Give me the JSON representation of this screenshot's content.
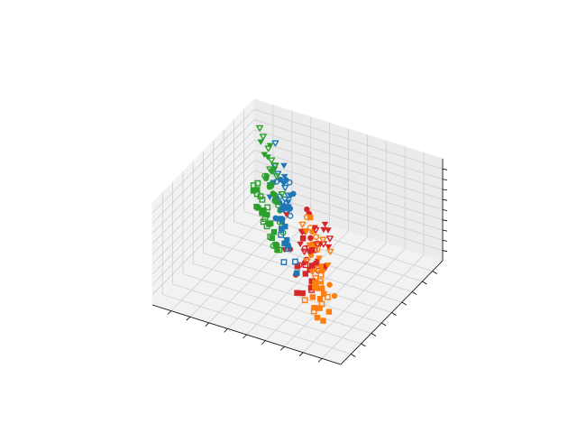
{
  "chart_data": {
    "type": "scatter",
    "projection": "3d",
    "title": "",
    "xlabel": "",
    "ylabel": "",
    "zlabel": "",
    "grid": true,
    "tick_labels_visible": false,
    "xlim": [
      0,
      10
    ],
    "ylim": [
      0,
      10
    ],
    "zlim": [
      0,
      10
    ],
    "x_ticks": [
      1,
      2,
      3,
      4,
      5,
      6,
      7,
      8,
      9
    ],
    "y_ticks": [
      1,
      2,
      3,
      4,
      5,
      6,
      7,
      8,
      9
    ],
    "z_ticks": [
      1,
      2,
      3,
      4,
      5,
      6,
      7,
      8,
      9
    ],
    "series": [
      {
        "color": "#d62728",
        "marker": "triangle-down",
        "filled": true,
        "points": [
          [
            2.5,
            2.0,
            8.3
          ],
          [
            3.0,
            3.0,
            8.6
          ],
          [
            2.0,
            2.5,
            7.8
          ],
          [
            3.5,
            2.5,
            7.2
          ],
          [
            2.8,
            3.5,
            8.0
          ],
          [
            2.2,
            1.8,
            7.0
          ],
          [
            3.2,
            2.2,
            8.9
          ],
          [
            4.5,
            3.0,
            9.0
          ],
          [
            3.8,
            1.5,
            7.5
          ],
          [
            2.6,
            2.8,
            7.4
          ],
          [
            3.0,
            4.0,
            7.9
          ],
          [
            2.4,
            3.2,
            8.5
          ]
        ]
      },
      {
        "color": "#d62728",
        "marker": "triangle-down",
        "filled": false,
        "points": [
          [
            2.0,
            2.0,
            8.6
          ],
          [
            3.4,
            2.8,
            8.2
          ],
          [
            2.8,
            1.6,
            7.8
          ],
          [
            2.2,
            3.0,
            8.0
          ],
          [
            3.0,
            2.4,
            7.2
          ],
          [
            4.0,
            3.6,
            7.0
          ],
          [
            2.6,
            2.0,
            7.6
          ],
          [
            3.6,
            4.2,
            6.8
          ]
        ]
      },
      {
        "color": "#d62728",
        "marker": "circle",
        "filled": true,
        "points": [
          [
            3.0,
            2.0,
            6.2
          ],
          [
            3.5,
            3.5,
            6.8
          ],
          [
            2.2,
            2.5,
            5.8
          ],
          [
            3.2,
            1.5,
            5.4
          ],
          [
            4.2,
            2.8,
            6.0
          ],
          [
            3.8,
            4.0,
            4.8
          ],
          [
            4.5,
            5.0,
            7.5
          ],
          [
            3.3,
            3.0,
            9.8
          ]
        ]
      },
      {
        "color": "#d62728",
        "marker": "circle",
        "filled": false,
        "points": [
          [
            2.0,
            1.5,
            6.5
          ],
          [
            2.6,
            2.2,
            6.0
          ],
          [
            3.0,
            3.0,
            6.4
          ],
          [
            3.4,
            4.0,
            5.8
          ],
          [
            2.4,
            2.8,
            5.2
          ],
          [
            3.8,
            3.5,
            5.6
          ],
          [
            2.8,
            1.8,
            6.8
          ],
          [
            3.6,
            2.6,
            5.0
          ]
        ]
      },
      {
        "color": "#d62728",
        "marker": "square",
        "filled": true,
        "points": [
          [
            3.0,
            2.5,
            5.0
          ],
          [
            3.5,
            3.0,
            3.8
          ],
          [
            3.8,
            4.2,
            3.2
          ],
          [
            4.2,
            3.5,
            3.6
          ],
          [
            3.4,
            2.0,
            3.0
          ],
          [
            3.2,
            3.0,
            2.6
          ],
          [
            4.0,
            4.6,
            4.2
          ],
          [
            3.6,
            3.8,
            2.2
          ],
          [
            2.8,
            2.8,
            5.4
          ],
          [
            4.6,
            4.8,
            4.8
          ],
          [
            3.0,
            1.8,
            3.4
          ]
        ]
      },
      {
        "color": "#d62728",
        "marker": "square",
        "filled": false,
        "points": [
          [
            2.2,
            1.2,
            4.8
          ],
          [
            3.6,
            3.2,
            4.4
          ]
        ]
      },
      {
        "color": "#1f77b4",
        "marker": "triangle-down",
        "filled": true,
        "points": [
          [
            6.0,
            5.5,
            8.6
          ],
          [
            6.5,
            6.5,
            8.0
          ],
          [
            5.5,
            5.0,
            7.6
          ],
          [
            6.2,
            4.5,
            8.2
          ],
          [
            7.0,
            6.0,
            7.4
          ],
          [
            6.8,
            7.0,
            8.4
          ],
          [
            5.8,
            5.8,
            7.2
          ],
          [
            6.4,
            5.2,
            8.8
          ],
          [
            7.2,
            6.8,
            8.0
          ]
        ]
      },
      {
        "color": "#1f77b4",
        "marker": "triangle-down",
        "filled": false,
        "points": [
          [
            5.6,
            5.2,
            8.0
          ],
          [
            6.2,
            6.0,
            7.6
          ],
          [
            6.8,
            6.4,
            8.2
          ],
          [
            7.4,
            7.2,
            7.8
          ],
          [
            5.4,
            4.8,
            7.4
          ],
          [
            6.0,
            5.6,
            7.0
          ],
          [
            7.8,
            8.0,
            9.0
          ]
        ]
      },
      {
        "color": "#1f77b4",
        "marker": "circle",
        "filled": true,
        "points": [
          [
            6.0,
            5.5,
            6.5
          ],
          [
            6.5,
            6.0,
            6.0
          ],
          [
            7.0,
            6.5,
            5.5
          ],
          [
            5.8,
            5.0,
            5.8
          ],
          [
            6.2,
            6.8,
            6.2
          ],
          [
            5.5,
            5.2,
            6.8
          ],
          [
            6.8,
            7.2,
            6.8
          ],
          [
            6.4,
            6.2,
            5.2
          ],
          [
            5.6,
            4.6,
            6.0
          ],
          [
            7.2,
            7.4,
            6.4
          ],
          [
            6.6,
            5.8,
            4.6
          ]
        ]
      },
      {
        "color": "#1f77b4",
        "marker": "circle",
        "filled": false,
        "points": [
          [
            5.6,
            5.4,
            5.8
          ],
          [
            6.0,
            6.0,
            5.6
          ],
          [
            6.8,
            6.6,
            5.8
          ],
          [
            7.2,
            7.0,
            6.6
          ],
          [
            6.4,
            6.8,
            7.2
          ]
        ]
      },
      {
        "color": "#1f77b4",
        "marker": "square",
        "filled": true,
        "points": [
          [
            6.2,
            6.0,
            3.8
          ],
          [
            6.8,
            6.6,
            3.6
          ],
          [
            5.8,
            5.2,
            3.2
          ],
          [
            6.5,
            6.2,
            3.2
          ],
          [
            7.0,
            7.2,
            3.8
          ],
          [
            5.4,
            4.8,
            3.6
          ],
          [
            6.0,
            5.8,
            2.8
          ],
          [
            4.6,
            4.2,
            2.0
          ],
          [
            6.6,
            7.0,
            4.4
          ]
        ]
      },
      {
        "color": "#1f77b4",
        "marker": "square",
        "filled": false,
        "points": [
          [
            6.2,
            5.6,
            3.4
          ],
          [
            4.8,
            4.4,
            2.8
          ],
          [
            5.4,
            4.4,
            2.4
          ],
          [
            5.6,
            5.2,
            2.8
          ]
        ]
      },
      {
        "color": "#ff7f0e",
        "marker": "triangle-down",
        "filled": true,
        "points": [
          [
            2.5,
            2.5,
            6.4
          ],
          [
            3.0,
            3.0,
            6.8
          ],
          [
            2.2,
            2.8,
            5.6
          ],
          [
            3.5,
            3.4,
            6.2
          ],
          [
            4.0,
            4.0,
            6.6
          ],
          [
            3.8,
            3.6,
            7.2
          ]
        ]
      },
      {
        "color": "#ff7f0e",
        "marker": "triangle-down",
        "filled": false,
        "points": [
          [
            2.4,
            3.4,
            6.2
          ],
          [
            3.2,
            2.6,
            5.6
          ],
          [
            3.0,
            3.8,
            6.6
          ],
          [
            4.2,
            4.0,
            7.2
          ],
          [
            2.8,
            2.4,
            5.0
          ]
        ]
      },
      {
        "color": "#ff7f0e",
        "marker": "circle",
        "filled": true,
        "points": [
          [
            2.0,
            2.6,
            4.0
          ],
          [
            2.6,
            3.0,
            4.6
          ],
          [
            3.0,
            3.6,
            4.2
          ],
          [
            1.2,
            1.6,
            4.4
          ],
          [
            2.4,
            1.8,
            5.0
          ],
          [
            3.6,
            4.0,
            5.4
          ],
          [
            4.0,
            4.6,
            6.0
          ],
          [
            3.2,
            3.0,
            5.8
          ],
          [
            3.8,
            2.8,
            4.6
          ],
          [
            2.8,
            2.4,
            3.8
          ]
        ]
      },
      {
        "color": "#ff7f0e",
        "marker": "circle",
        "filled": false,
        "points": [
          [
            3.2,
            3.6,
            6.2
          ],
          [
            3.6,
            3.8,
            5.8
          ],
          [
            4.0,
            4.4,
            6.6
          ],
          [
            4.4,
            4.8,
            7.0
          ],
          [
            3.4,
            4.0,
            5.2
          ],
          [
            3.8,
            4.6,
            5.6
          ]
        ]
      },
      {
        "color": "#ff7f0e",
        "marker": "square",
        "filled": true,
        "points": [
          [
            1.6,
            1.8,
            2.4
          ],
          [
            2.2,
            2.0,
            2.2
          ],
          [
            2.4,
            2.4,
            2.6
          ],
          [
            2.0,
            1.4,
            2.0
          ],
          [
            2.8,
            2.8,
            3.0
          ],
          [
            3.0,
            3.0,
            2.8
          ],
          [
            1.8,
            1.6,
            1.6
          ],
          [
            2.6,
            2.2,
            1.8
          ],
          [
            3.0,
            2.8,
            2.0
          ],
          [
            2.4,
            2.6,
            3.4
          ],
          [
            3.2,
            3.4,
            2.6
          ],
          [
            2.2,
            2.4,
            3.2
          ],
          [
            4.0,
            4.4,
            7.6
          ]
        ]
      },
      {
        "color": "#ff7f0e",
        "marker": "square",
        "filled": false,
        "points": [
          [
            2.0,
            2.4,
            3.0
          ],
          [
            2.6,
            2.8,
            3.4
          ],
          [
            2.8,
            3.2,
            3.0
          ],
          [
            2.2,
            2.2,
            2.4
          ],
          [
            3.0,
            3.6,
            3.4
          ],
          [
            2.4,
            1.8,
            2.0
          ],
          [
            3.2,
            2.4,
            2.0
          ],
          [
            3.0,
            3.2,
            4.4
          ],
          [
            2.6,
            2.8,
            3.8
          ],
          [
            3.4,
            3.8,
            2.6
          ],
          [
            3.6,
            4.0,
            3.2
          ]
        ]
      },
      {
        "color": "#2ca02c",
        "marker": "triangle-down",
        "filled": true,
        "points": [
          [
            8.2,
            8.0,
            7.4
          ],
          [
            8.6,
            8.4,
            7.0
          ],
          [
            9.0,
            8.8,
            7.6
          ],
          [
            7.8,
            7.6,
            6.6
          ],
          [
            8.4,
            8.6,
            7.8
          ]
        ]
      },
      {
        "color": "#2ca02c",
        "marker": "triangle-down",
        "filled": false,
        "points": [
          [
            7.6,
            7.4,
            7.0
          ],
          [
            8.0,
            8.0,
            7.2
          ],
          [
            8.6,
            8.8,
            7.2
          ],
          [
            9.2,
            9.4,
            7.4
          ],
          [
            7.4,
            7.0,
            6.2
          ],
          [
            6.8,
            6.8,
            5.8
          ],
          [
            7.0,
            6.6,
            5.4
          ],
          [
            8.2,
            8.2,
            6.0
          ],
          [
            7.8,
            8.0,
            6.8
          ],
          [
            9.6,
            9.8,
            7.6
          ],
          [
            7.4,
            7.4,
            6.6
          ]
        ]
      },
      {
        "color": "#2ca02c",
        "marker": "circle",
        "filled": true,
        "points": [
          [
            7.4,
            7.2,
            5.0
          ],
          [
            7.8,
            7.6,
            5.2
          ],
          [
            8.0,
            7.8,
            4.8
          ],
          [
            7.2,
            7.0,
            4.6
          ],
          [
            8.4,
            8.2,
            5.0
          ],
          [
            6.8,
            6.6,
            4.4
          ],
          [
            7.6,
            7.4,
            4.8
          ],
          [
            8.6,
            8.6,
            4.6
          ],
          [
            8.8,
            9.0,
            4.2
          ],
          [
            6.2,
            5.2,
            2.8
          ]
        ]
      },
      {
        "color": "#2ca02c",
        "marker": "circle",
        "filled": false,
        "points": [
          [
            7.0,
            6.8,
            4.6
          ],
          [
            7.4,
            7.2,
            4.4
          ],
          [
            8.2,
            8.2,
            4.4
          ],
          [
            8.8,
            8.8,
            4.4
          ],
          [
            6.6,
            6.2,
            3.8
          ],
          [
            6.2,
            5.8,
            3.4
          ],
          [
            6.4,
            5.2,
            2.6
          ]
        ]
      },
      {
        "color": "#2ca02c",
        "marker": "square",
        "filled": true,
        "points": [
          [
            7.0,
            6.4,
            2.4
          ],
          [
            7.4,
            6.8,
            2.6
          ],
          [
            7.8,
            7.2,
            2.8
          ],
          [
            8.2,
            7.6,
            2.6
          ],
          [
            8.6,
            7.8,
            2.4
          ],
          [
            8.8,
            8.0,
            2.2
          ],
          [
            7.6,
            7.0,
            2.2
          ],
          [
            9.2,
            8.8,
            2.8
          ],
          [
            9.4,
            8.8,
            2.6
          ],
          [
            6.6,
            5.8,
            2.0
          ],
          [
            6.4,
            5.6,
            1.8
          ],
          [
            7.0,
            6.2,
            2.0
          ],
          [
            8.4,
            7.8,
            2.0
          ]
        ]
      },
      {
        "color": "#2ca02c",
        "marker": "square",
        "filled": false,
        "points": [
          [
            7.2,
            6.4,
            1.8
          ],
          [
            7.6,
            6.8,
            2.2
          ],
          [
            8.0,
            7.2,
            2.0
          ],
          [
            8.4,
            7.8,
            2.2
          ],
          [
            8.8,
            8.4,
            2.8
          ],
          [
            9.2,
            8.8,
            2.4
          ],
          [
            9.6,
            9.2,
            2.6
          ],
          [
            6.4,
            5.8,
            1.6
          ],
          [
            7.8,
            7.0,
            2.6
          ],
          [
            8.6,
            8.2,
            2.8
          ],
          [
            8.0,
            7.6,
            3.0
          ],
          [
            9.6,
            9.6,
            2.4
          ]
        ]
      }
    ]
  }
}
